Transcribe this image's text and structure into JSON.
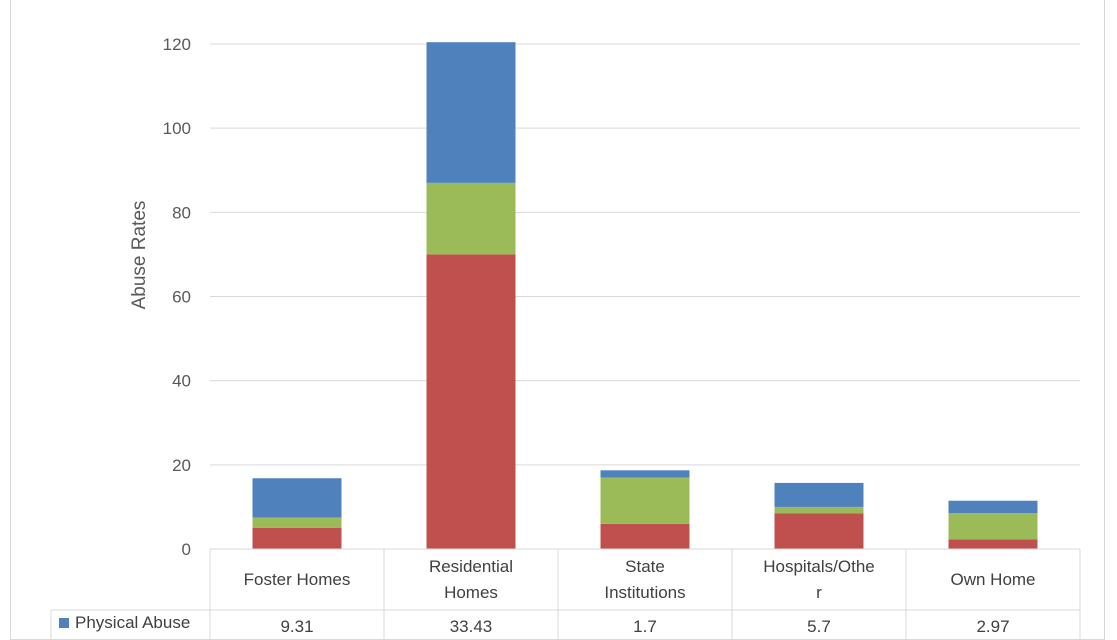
{
  "chart_data": {
    "type": "bar",
    "stacked": true,
    "ylabel": "Abuse Rates",
    "ylim": [
      0,
      120
    ],
    "yticks": [
      0,
      20,
      40,
      60,
      80,
      100,
      120
    ],
    "grid": true,
    "legend": "data-table",
    "categories": [
      [
        "Foster Homes"
      ],
      [
        "Residential",
        "Homes"
      ],
      [
        "State",
        "Institutions"
      ],
      [
        "Hospitals/Othe",
        "r"
      ],
      [
        "Own Home"
      ]
    ],
    "series": [
      {
        "color": "#c0504d",
        "values": [
          5.0,
          70.0,
          6.0,
          8.5,
          2.3
        ]
      },
      {
        "color": "#9bbb59",
        "values": [
          2.5,
          17.0,
          11.0,
          1.5,
          6.2
        ]
      },
      {
        "name": "Physical Abuse",
        "color": "#4f81bd",
        "values": [
          9.31,
          33.43,
          1.7,
          5.7,
          2.97
        ]
      }
    ],
    "table_row": {
      "label": "Physical Abuse",
      "values": [
        "9.31",
        "33.43",
        "1.7",
        "5.7",
        "2.97"
      ]
    }
  }
}
